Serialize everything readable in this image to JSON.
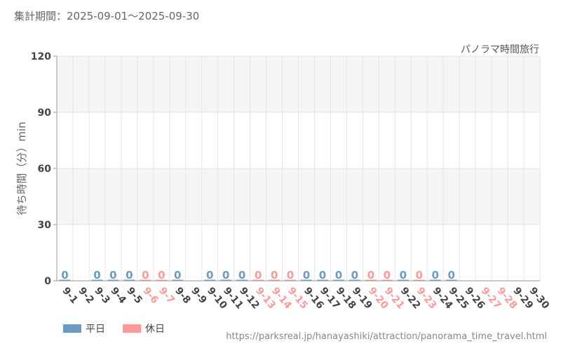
{
  "header": {
    "period_label": "集計期間：2025-09-01～2025-09-30",
    "source_url": "https://parksreal.jp/hanayashiki/attraction/panorama_time_travel.html"
  },
  "legend": {
    "weekday_label": "平日",
    "holiday_label": "休日"
  },
  "colors": {
    "weekday": "#6b9bc3",
    "holiday": "#ff9999"
  },
  "chart_data": {
    "type": "bar",
    "title": "パノラマ時間旅行",
    "ylabel": "待ち時間（分）min",
    "ylim": [
      0,
      120
    ],
    "yticks": [
      0,
      30,
      60,
      90,
      120
    ],
    "grid": true,
    "legend_position": "bottom-left",
    "categories": [
      "9-1",
      "9-2",
      "9-3",
      "9-4",
      "9-5",
      "9-6",
      "9-7",
      "9-8",
      "9-9",
      "9-10",
      "9-11",
      "9-12",
      "9-13",
      "9-14",
      "9-15",
      "9-16",
      "9-17",
      "9-18",
      "9-19",
      "9-20",
      "9-21",
      "9-22",
      "9-23",
      "9-24",
      "9-25",
      "9-26",
      "9-27",
      "9-28",
      "9-29",
      "9-30"
    ],
    "day_type": [
      "weekday",
      "weekday",
      "weekday",
      "weekday",
      "weekday",
      "holiday",
      "holiday",
      "weekday",
      "weekday",
      "weekday",
      "weekday",
      "weekday",
      "holiday",
      "holiday",
      "holiday",
      "weekday",
      "weekday",
      "weekday",
      "weekday",
      "holiday",
      "holiday",
      "weekday",
      "holiday",
      "weekday",
      "weekday",
      "weekday",
      "holiday",
      "holiday",
      "weekday",
      "weekday"
    ],
    "values": [
      0,
      null,
      0,
      0,
      0,
      0,
      0,
      0,
      null,
      0,
      0,
      0,
      0,
      0,
      0,
      0,
      0,
      0,
      0,
      0,
      0,
      0,
      0,
      0,
      0,
      null,
      null,
      null,
      null,
      null
    ],
    "value_labels": [
      "0",
      "",
      "0",
      "0",
      "0",
      "0",
      "0",
      "0",
      "",
      "0",
      "0",
      "0",
      "0",
      "0",
      "0",
      "0",
      "0",
      "0",
      "0",
      "0",
      "0",
      "0",
      "0",
      "0",
      "0",
      "",
      "",
      "",
      "",
      ""
    ]
  }
}
